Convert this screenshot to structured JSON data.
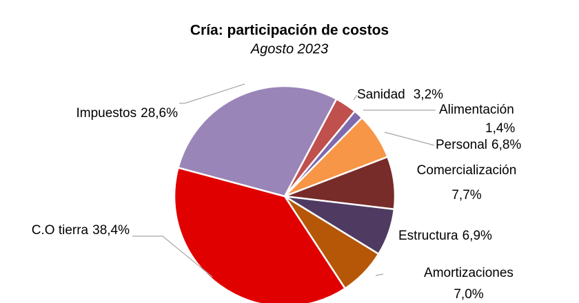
{
  "chart_data": {
    "type": "pie",
    "title": "Cría: participación de costos",
    "subtitle": "Agosto 2023",
    "categories": [
      "Sanidad",
      "Alimentación",
      "Personal",
      "Comercialización",
      "Estructura",
      "Amortizaciones",
      "C.O tierra",
      "Impuestos"
    ],
    "values": [
      3.2,
      1.4,
      6.8,
      7.7,
      6.9,
      7.0,
      38.4,
      28.6
    ],
    "value_labels": [
      "3,2%",
      "1,4%",
      "6,8%",
      "7,7%",
      "6,9%",
      "7,0%",
      "38,4%",
      "28,6%"
    ],
    "colors": [
      "#c0504d",
      "#7f6aae",
      "#f79646",
      "#772c2a",
      "#4f3b62",
      "#b65708",
      "#e00000",
      "#9a85b8"
    ]
  }
}
